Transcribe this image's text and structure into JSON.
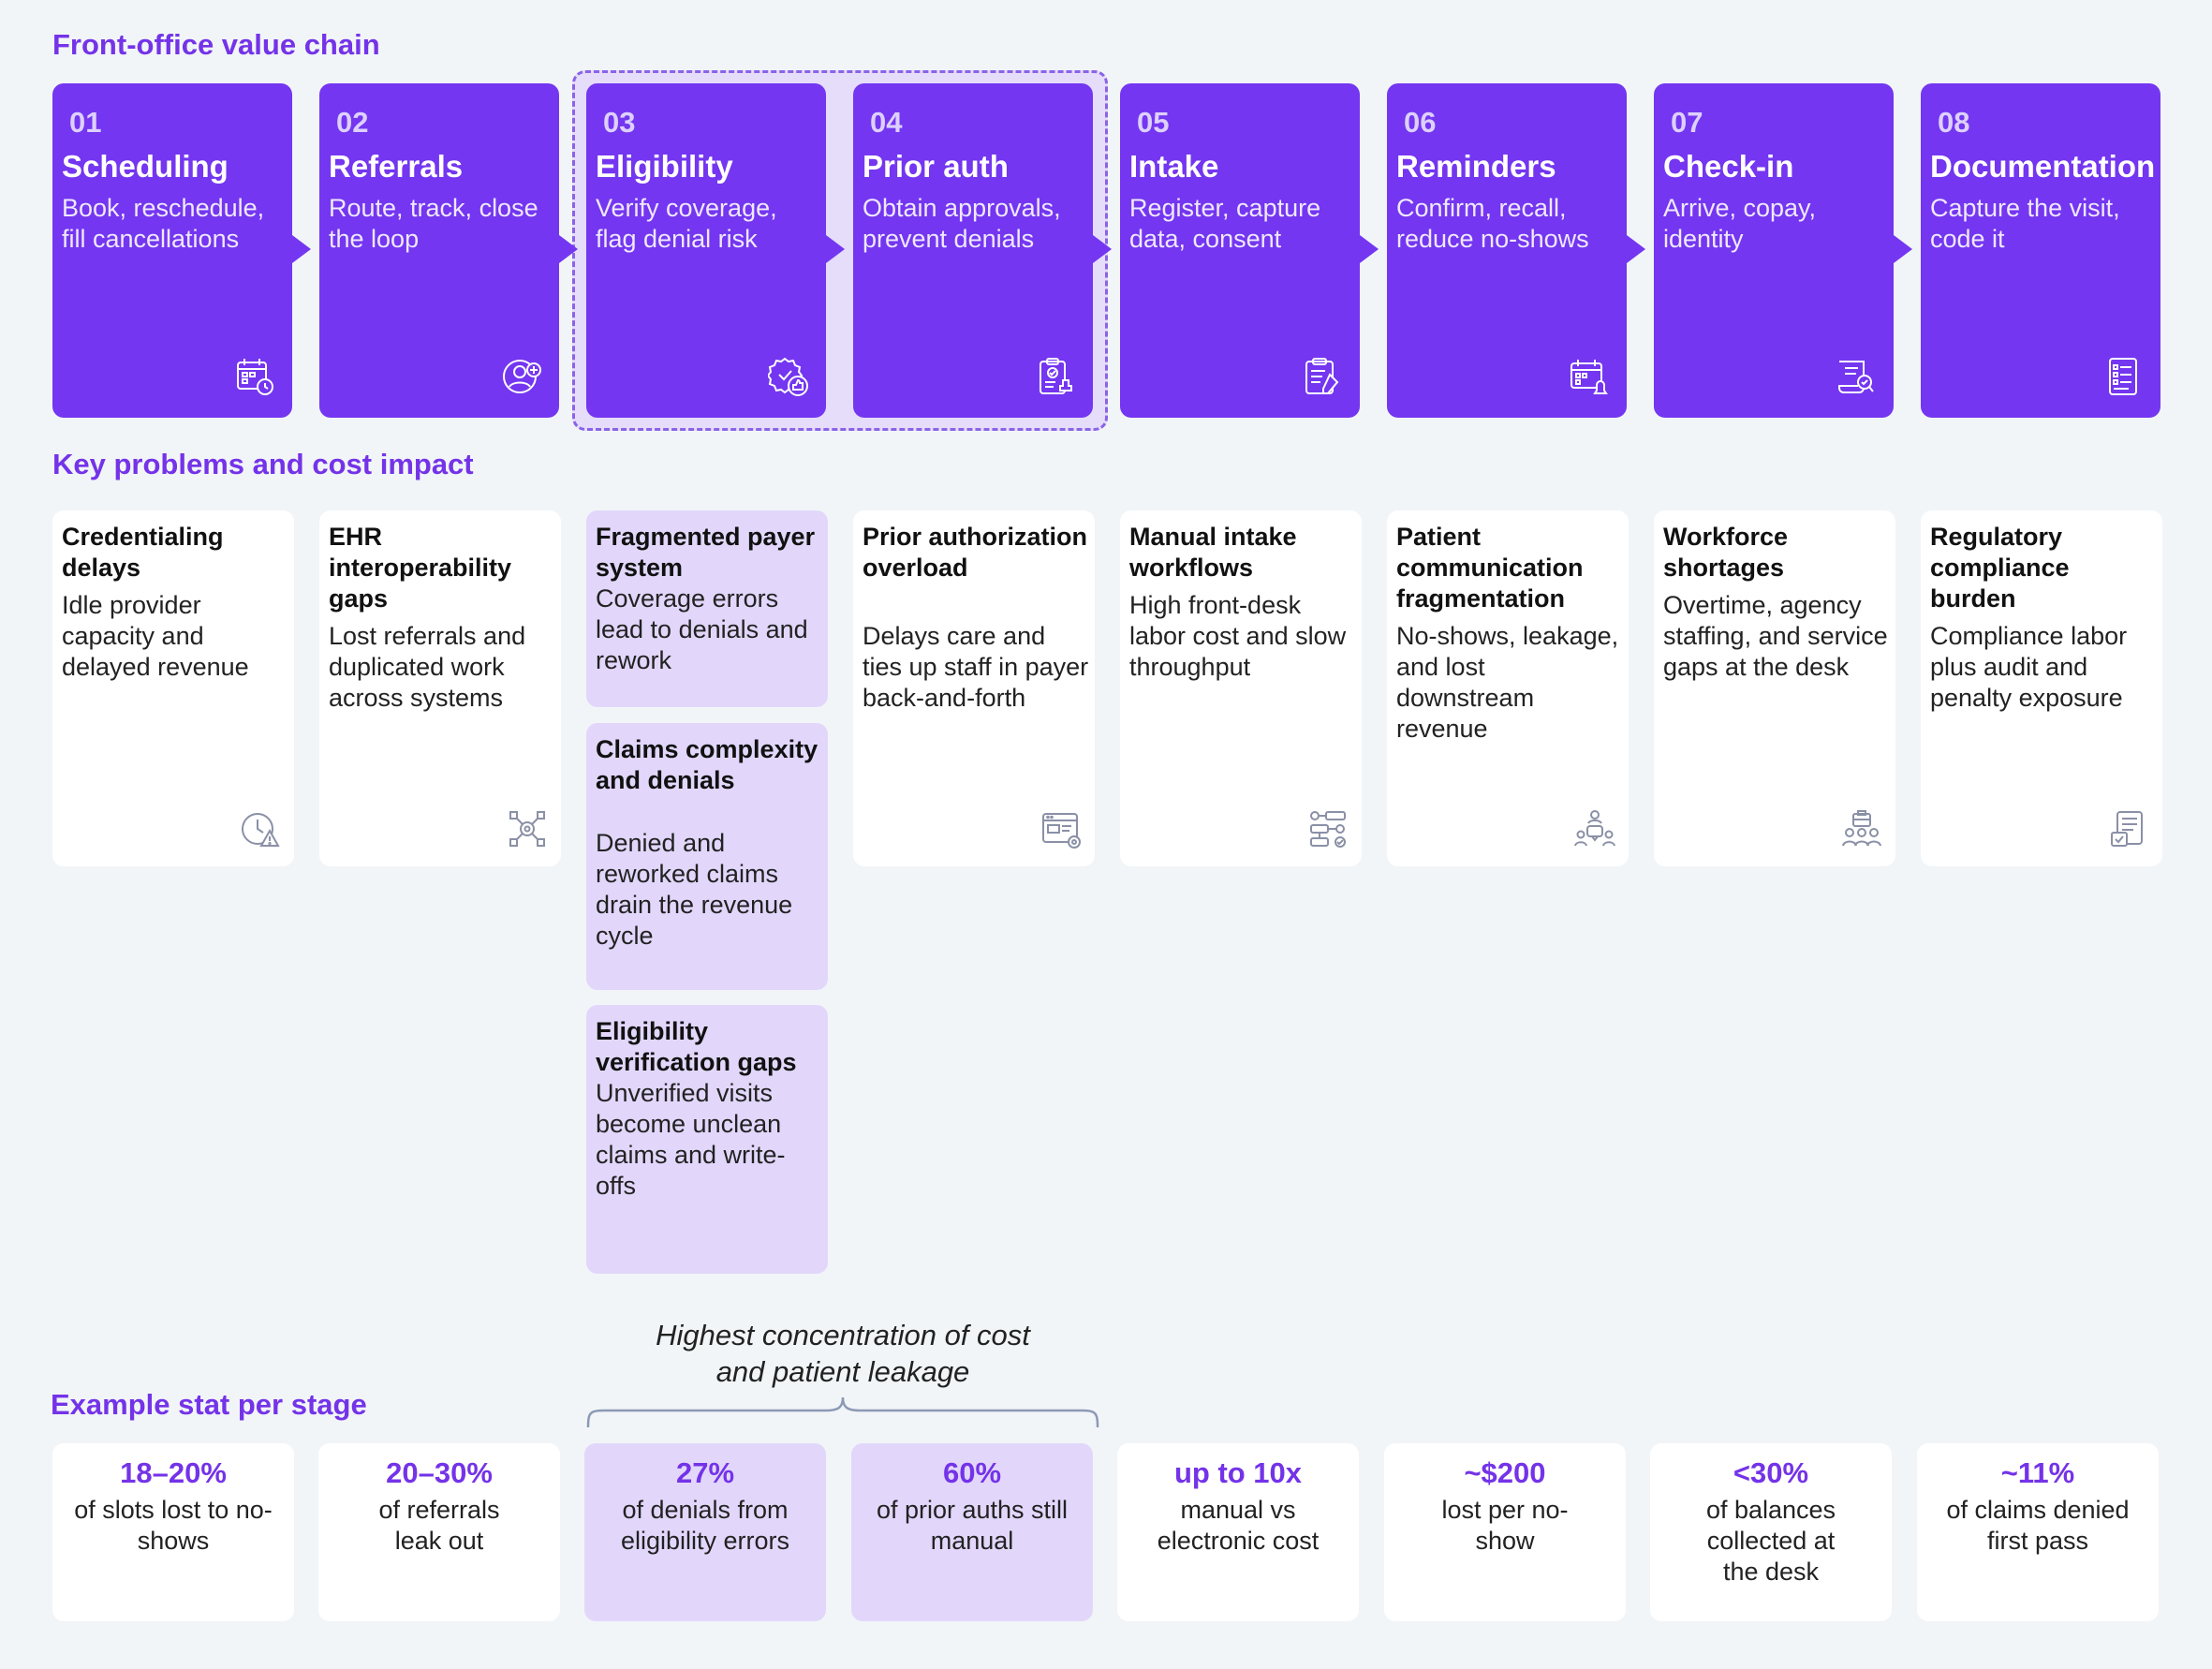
{
  "sections": {
    "value_chain": "Front-office value chain",
    "problems": "Key problems and cost impact",
    "stats": "Example stat per stage"
  },
  "callout": {
    "line1": "Highest concentration of cost",
    "line2": "and patient leakage"
  },
  "stages": [
    {
      "num": "01",
      "title": "Scheduling",
      "desc": "Book, reschedule, fill cancellations",
      "icon": "calendar-clock-icon"
    },
    {
      "num": "02",
      "title": "Referrals",
      "desc": "Route, track, close the loop",
      "icon": "user-add-icon"
    },
    {
      "num": "03",
      "title": "Eligibility",
      "desc": "Verify coverage, flag denial risk",
      "icon": "badge-thumbs-up-icon"
    },
    {
      "num": "04",
      "title": "Prior auth",
      "desc": "Obtain approvals, prevent denials",
      "icon": "clipboard-stamp-icon"
    },
    {
      "num": "05",
      "title": "Intake",
      "desc": "Register, capture data, consent",
      "icon": "clipboard-pen-icon"
    },
    {
      "num": "06",
      "title": "Reminders",
      "desc": "Confirm, recall, reduce no-shows",
      "icon": "calendar-bell-icon"
    },
    {
      "num": "07",
      "title": "Check-in",
      "desc": "Arrive, copay, identity",
      "icon": "scroll-check-icon"
    },
    {
      "num": "08",
      "title": "Documentation",
      "desc": "Capture the visit, code it",
      "icon": "document-list-icon"
    }
  ],
  "problems": [
    {
      "title": "Credentialing delays",
      "desc": "Idle provider capacity and delayed revenue",
      "icon": "clock-warning-icon"
    },
    {
      "title": "EHR interoperability gaps",
      "desc": "Lost referrals and duplicated work across systems",
      "icon": "network-gear-icon"
    },
    {
      "title": "Fragmented payer system",
      "desc": "Coverage errors lead to denials and rework"
    },
    {
      "title": "Claims complexity and denials",
      "desc": "Denied and reworked claims drain the revenue cycle"
    },
    {
      "title": "Eligibility verification gaps",
      "desc": "Unverified visits become unclean claims and write-offs"
    },
    {
      "title": "Prior authorization overload",
      "desc": "Delays care and ties up staff in payer back-and-forth",
      "icon": "browser-card-icon"
    },
    {
      "title": "Manual intake workflows",
      "desc": "High front-desk labor cost and slow throughput",
      "icon": "workflow-icon"
    },
    {
      "title": "Patient communication fragmentation",
      "desc": "No-shows, leakage, and lost downstream revenue",
      "icon": "chat-people-icon"
    },
    {
      "title": "Workforce shortages",
      "desc": "Overtime, agency staffing, and service gaps at the desk",
      "icon": "team-briefcase-icon"
    },
    {
      "title": "Regulatory compliance burden",
      "desc": "Compliance labor plus audit and penalty exposure",
      "icon": "compliance-doc-icon"
    }
  ],
  "stats": [
    {
      "value": "18–20%",
      "label": "of slots lost to no-shows"
    },
    {
      "value": "20–30%",
      "label": "of referrals leak out"
    },
    {
      "value": "27%",
      "label": "of denials from eligibility errors"
    },
    {
      "value": "60%",
      "label": "of prior auths still manual"
    },
    {
      "value": "up to 10x",
      "label": "manual vs electronic cost"
    },
    {
      "value": "~$200",
      "label": "lost per no-show"
    },
    {
      "value": "<30%",
      "label": "of balances collected at the desk"
    },
    {
      "value": "~11%",
      "label": "of claims denied first pass"
    }
  ],
  "colors": {
    "accent": "#7436f0",
    "title": "#7433e8",
    "highlight": "#e2d7fb",
    "background": "#f1f5f8"
  }
}
